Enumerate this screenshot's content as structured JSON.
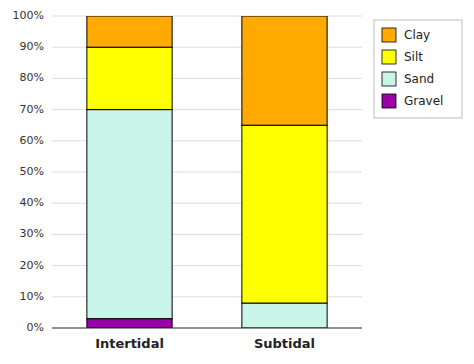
{
  "chart_data": {
    "type": "bar",
    "stacked": true,
    "categories": [
      "Intertidal",
      "Subtidal"
    ],
    "series": [
      {
        "name": "Gravel",
        "color": "#9900aa",
        "values": [
          3,
          0
        ]
      },
      {
        "name": "Sand",
        "color": "#c8f5e8",
        "values": [
          67,
          8
        ]
      },
      {
        "name": "Silt",
        "color": "#ffff00",
        "values": [
          20,
          57
        ]
      },
      {
        "name": "Clay",
        "color": "#ffaa00",
        "values": [
          10,
          35
        ]
      }
    ],
    "ylim": [
      0,
      100
    ],
    "yticks": [
      {
        "value": 0,
        "label": "0%"
      },
      {
        "value": 10,
        "label": "10%"
      },
      {
        "value": 20,
        "label": "20%"
      },
      {
        "value": 30,
        "label": "30%"
      },
      {
        "value": 40,
        "label": "40%"
      },
      {
        "value": 50,
        "label": "50%"
      },
      {
        "value": 60,
        "label": "60%"
      },
      {
        "value": 70,
        "label": "70%"
      },
      {
        "value": 80,
        "label": "80%"
      },
      {
        "value": 90,
        "label": "90%"
      },
      {
        "value": 100,
        "label": "100%"
      }
    ],
    "grid": true,
    "legend": "upper right"
  }
}
